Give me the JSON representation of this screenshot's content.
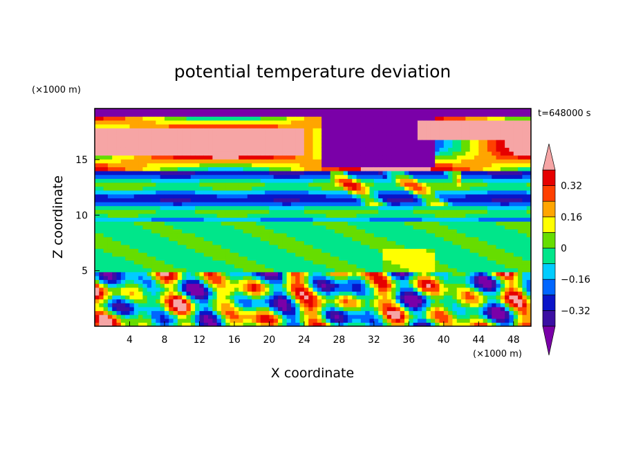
{
  "chart_data": {
    "type": "heatmap",
    "title": "potential temperature deviation",
    "time_label": "t=648000 s",
    "xlabel": "X coordinate",
    "ylabel": "Z coordinate",
    "x_unit": "(×1000 m)",
    "y_unit": "(×1000 m)",
    "xlim": [
      0,
      50
    ],
    "ylim": [
      0,
      19.6
    ],
    "x_ticks": [
      4,
      8,
      12,
      16,
      20,
      24,
      28,
      32,
      36,
      40,
      44,
      48
    ],
    "y_ticks": [
      5,
      10,
      15
    ],
    "colorbar": {
      "levels": [
        -0.4,
        -0.32,
        -0.24,
        -0.16,
        -0.08,
        0,
        0.08,
        0.16,
        0.24,
        0.32,
        0.4
      ],
      "labels": [
        "0.32",
        "0.16",
        "0",
        "−0.16",
        "−0.32"
      ],
      "colors": [
        "#7a00a8",
        "#3b0fa3",
        "#0a14c8",
        "#0066ff",
        "#00ccff",
        "#00e68a",
        "#66dd00",
        "#ffff00",
        "#ffa500",
        "#ff4000",
        "#e60000",
        "#f6a5a5"
      ]
    },
    "field_description_bands": [
      {
        "z_range": [
          0,
          4.8
        ],
        "pattern": "turbulent mixed layer"
      },
      {
        "z_range": [
          4.8,
          9.5
        ],
        "pattern": "near zero, green"
      },
      {
        "z_range": [
          9.5,
          14
        ],
        "pattern": "negative stratified bands"
      },
      {
        "z_range": [
          14,
          19.6
        ],
        "pattern": "large positive and negative anomalies"
      }
    ]
  }
}
